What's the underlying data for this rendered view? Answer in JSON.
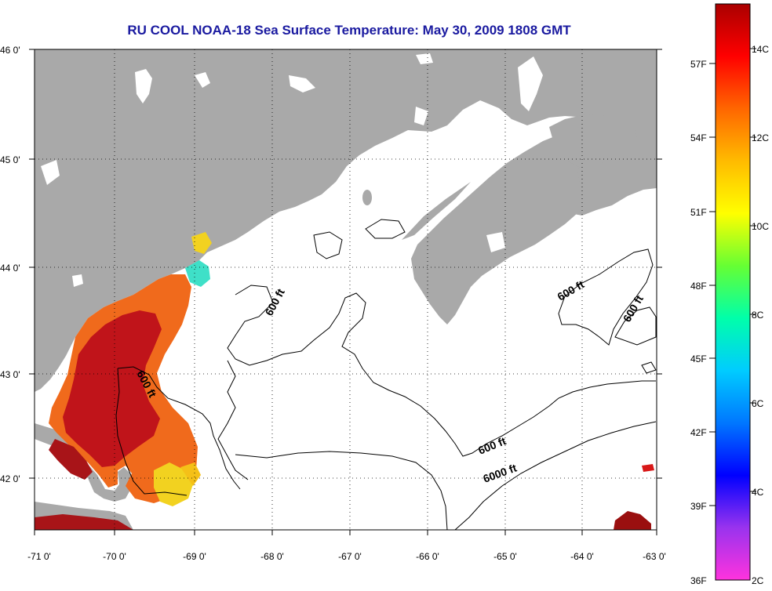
{
  "title": "RU COOL  NOAA-18  Sea Surface Temperature:  May 30, 2009 1808 GMT",
  "colors": {
    "land": "#a9a9a9",
    "ocean": "#ffffff",
    "title": "#1a1aa0",
    "warm_water": "#c0141a",
    "orange_water": "#f06a1c",
    "yellow_water": "#f2d220",
    "cyan_water": "#3fe0c8",
    "contour": "#000000"
  },
  "longitude_ticks": [
    "-71 0'",
    "-70 0'",
    "-69 0'",
    "-68 0'",
    "-67 0'",
    "-66 0'",
    "-65 0'",
    "-64 0'",
    "-63 0'"
  ],
  "latitude_ticks": [
    "46 0'",
    "45 0'",
    "44 0'",
    "43 0'",
    "42 0'"
  ],
  "contour_labels": [
    {
      "text": "600 ft",
      "rotation": -62
    },
    {
      "text": "600 ft",
      "rotation": -62
    },
    {
      "text": "600 ft",
      "rotation": -30
    },
    {
      "text": "600 ft",
      "rotation": -60
    },
    {
      "text": "600 ft",
      "rotation": -22
    },
    {
      "text": "6000 ft",
      "rotation": -20
    }
  ],
  "colorbar": {
    "celsius_labels": [
      "14C",
      "12C",
      "10C",
      "8C",
      "6C",
      "4C",
      "2C"
    ],
    "fahrenheit_labels": [
      "57F",
      "54F",
      "51F",
      "48F",
      "45F",
      "42F",
      "39F",
      "36F"
    ],
    "stops": [
      "#ff33dd",
      "#9933ee",
      "#0000ff",
      "#0077ff",
      "#00ccff",
      "#00ffaa",
      "#66ff33",
      "#ffff00",
      "#ffbb00",
      "#ff6600",
      "#ff0000",
      "#aa0000"
    ]
  }
}
